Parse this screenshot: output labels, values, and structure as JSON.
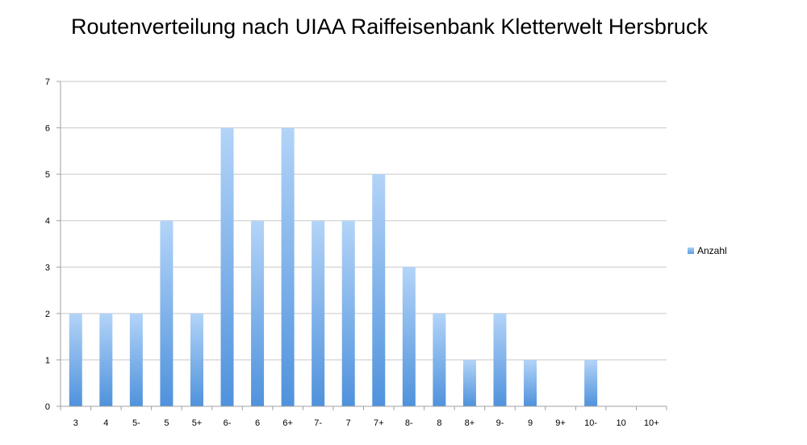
{
  "chart_data": {
    "type": "bar",
    "title": "Routenverteilung nach UIAA Raiffeisenbank Kletterwelt Hersbruck",
    "xlabel": "",
    "ylabel": "",
    "categories": [
      "3",
      "4",
      "5-",
      "5",
      "5+",
      "6-",
      "6",
      "6+",
      "7-",
      "7",
      "7+",
      "8-",
      "8",
      "8+",
      "9-",
      "9",
      "9+",
      "10-",
      "10",
      "10+"
    ],
    "series": [
      {
        "name": "Anzahl",
        "values": [
          2,
          2,
          2,
          4,
          2,
          6,
          4,
          6,
          4,
          4,
          5,
          3,
          2,
          1,
          2,
          1,
          0,
          1,
          0,
          0
        ]
      }
    ],
    "ylim": [
      0,
      7
    ],
    "yticks": [
      0,
      1,
      2,
      3,
      4,
      5,
      6,
      7
    ],
    "grid": true,
    "legend_position": "right",
    "colors": {
      "bar_top": "#b3d4f8",
      "bar_bottom": "#4f92dc",
      "grid": "#c8c8c8",
      "axis": "#a0a0a0"
    }
  }
}
